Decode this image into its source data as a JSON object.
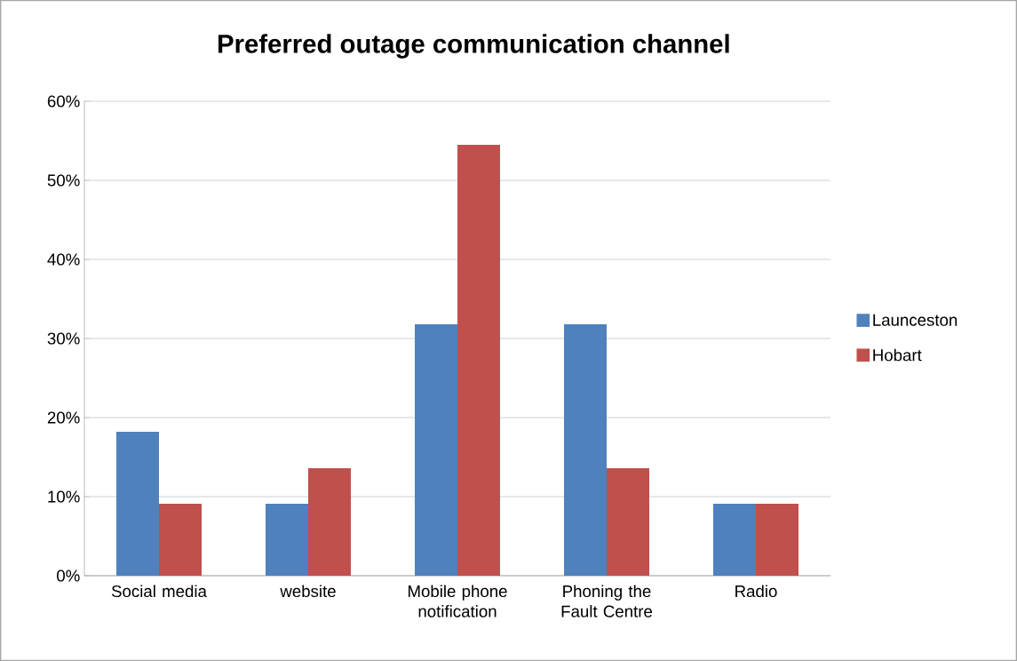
{
  "chart_data": {
    "type": "bar",
    "title": "Preferred outage communication channel",
    "categories": [
      "Social media",
      "website",
      "Mobile phone notification",
      "Phoning the Fault Centre",
      "Radio"
    ],
    "series": [
      {
        "name": "Launceston",
        "color": "#4f81bd",
        "values": [
          18.2,
          9.1,
          31.8,
          31.8,
          9.1
        ]
      },
      {
        "name": "Hobart",
        "color": "#c0504d",
        "values": [
          9.1,
          13.6,
          54.5,
          13.6,
          9.1
        ]
      }
    ],
    "ylim": [
      0,
      60
    ],
    "yticks": [
      {
        "value": 0,
        "label": "0%"
      },
      {
        "value": 10,
        "label": "10%"
      },
      {
        "value": 20,
        "label": "20%"
      },
      {
        "value": 30,
        "label": "30%"
      },
      {
        "value": 40,
        "label": "40%"
      },
      {
        "value": 50,
        "label": "50%"
      },
      {
        "value": 60,
        "label": "60%"
      }
    ],
    "grid": "y",
    "legend": "right"
  }
}
